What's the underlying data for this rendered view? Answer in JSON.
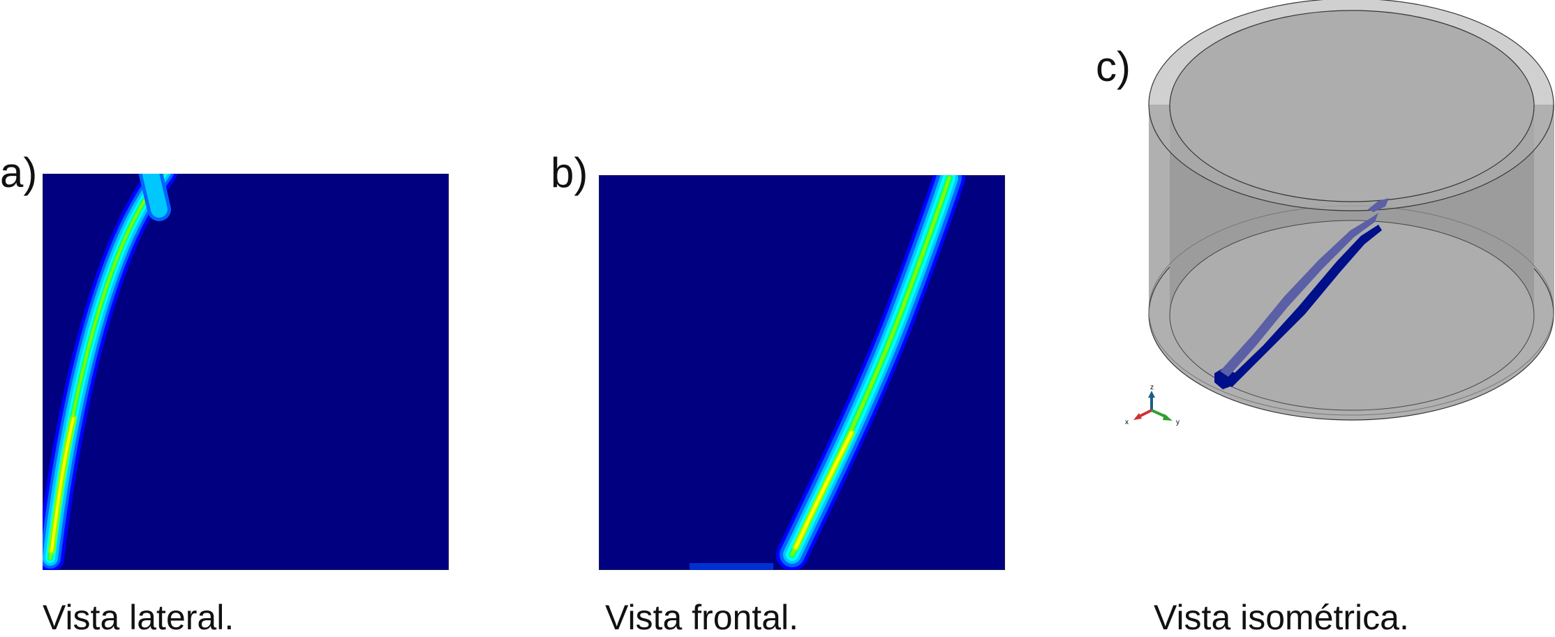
{
  "panels": [
    {
      "label": "a)",
      "caption": "Vista lateral."
    },
    {
      "label": "b)",
      "caption": "Vista frontal."
    },
    {
      "label": "c)",
      "caption": "Vista isométrica."
    }
  ],
  "triad": {
    "x": "x",
    "y": "y",
    "z": "z"
  },
  "colors": {
    "background_field": "#000080",
    "contour_levels": [
      "#0000ff",
      "#0064ff",
      "#00c8ff",
      "#00ffff",
      "#00ff80",
      "#80ff00",
      "#ffff00"
    ],
    "cylinder": "#b0b0b0",
    "crack": "#000f8a"
  }
}
